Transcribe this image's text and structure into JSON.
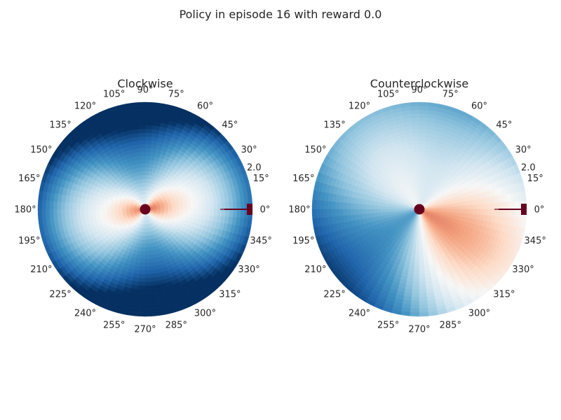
{
  "figure": {
    "suptitle": "Policy in episode 16 with reward 0.0"
  },
  "chart_data": [
    {
      "type": "heatmap",
      "projection": "polar",
      "title": "Clockwise",
      "theta_tick_labels": [
        "0°",
        "15°",
        "30°",
        "45°",
        "60°",
        "75°",
        "90°",
        "105°",
        "120°",
        "135°",
        "150°",
        "165°",
        "180°",
        "195°",
        "210°",
        "225°",
        "240°",
        "255°",
        "270°",
        "285°",
        "300°",
        "315°",
        "330°",
        "345°"
      ],
      "r_tick_labels": [
        "2.0"
      ],
      "rlim": [
        0,
        2.0
      ],
      "grid": false,
      "colormap": "RdBu_r",
      "value_range": [
        -1,
        1
      ],
      "markers": [
        {
          "name": "pole",
          "theta_deg": 0,
          "r": [
            1.4,
            2.0
          ],
          "color": "#67001f"
        }
      ],
      "value_field": {
        "base": -0.15,
        "radial": -0.95,
        "cos2": 0.3,
        "sin2": 0.1,
        "sin1": 0.03,
        "cos1": 0.02,
        "core": 0.7
      }
    },
    {
      "type": "heatmap",
      "projection": "polar",
      "title": "Counterclockwise",
      "theta_tick_labels": [
        "0°",
        "15°",
        "30°",
        "45°",
        "60°",
        "75°",
        "90°",
        "105°",
        "120°",
        "135°",
        "150°",
        "165°",
        "180°",
        "195°",
        "210°",
        "225°",
        "240°",
        "255°",
        "270°",
        "285°",
        "300°",
        "315°",
        "330°",
        "345°"
      ],
      "r_tick_labels": [
        "2.0"
      ],
      "rlim": [
        0,
        2.0
      ],
      "grid": false,
      "colormap": "RdBu_r",
      "value_range": [
        -1,
        1
      ],
      "markers": [
        {
          "name": "pole",
          "theta_deg": 0,
          "r": [
            1.4,
            2.0
          ],
          "color": "#67001f"
        }
      ],
      "value_field": {
        "base": -0.05,
        "radial": -0.4,
        "cos2": 0.05,
        "sin2": -0.25,
        "sin1": 0.0,
        "cos1": 0.35,
        "core": 0.0
      }
    }
  ]
}
